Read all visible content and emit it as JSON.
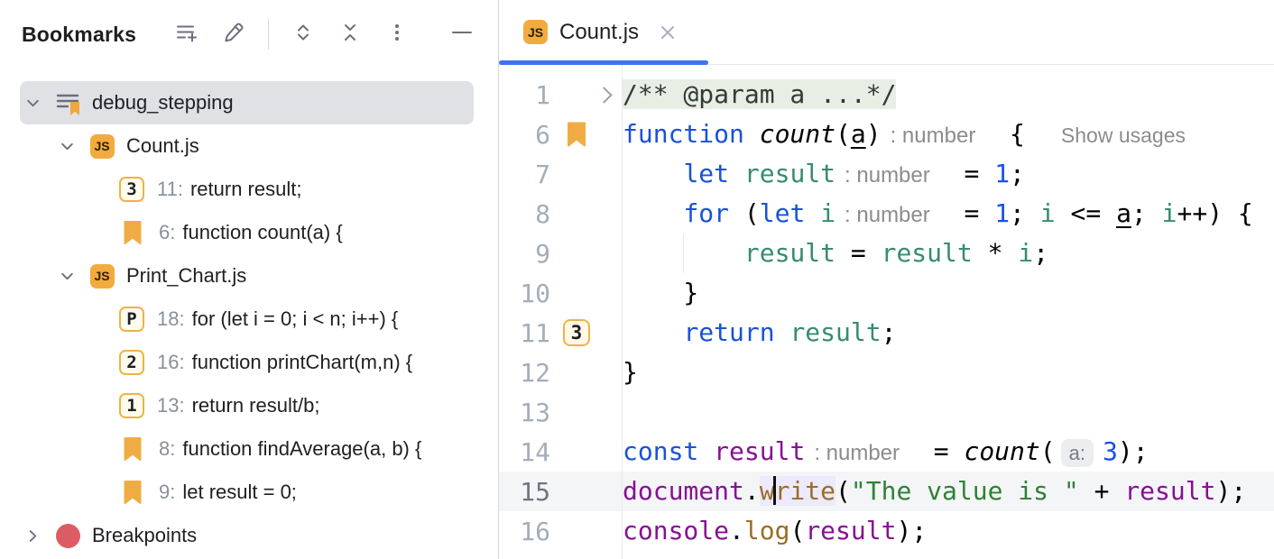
{
  "colors": {
    "accent_blue": "#3F74F0",
    "bookmark_orange": "#F2A63C",
    "breakpoint_red": "#DB5C64",
    "selection_gray": "#DFE1E5",
    "keyword_blue": "#1A52D6",
    "number_blue": "#1750EB",
    "local_variable_teal": "#368C72",
    "global_variable_purple": "#871094",
    "function_call_ochre": "#9A6E27",
    "string_green": "#2E8234",
    "inlay_gray": "#8C8C8C",
    "folded_comment_bg": "#E7EFE5"
  },
  "panel": {
    "title": "Bookmarks",
    "toolbar": [
      {
        "id": "add-bookmarks-list-button",
        "icon": "add-list-icon"
      },
      {
        "id": "edit-bookmark-button",
        "icon": "pencil-icon"
      },
      {
        "id": "toolbar-divider",
        "icon": "divider"
      },
      {
        "id": "expand-all-button",
        "icon": "expand-all-icon"
      },
      {
        "id": "collapse-all-button",
        "icon": "collapse-all-icon"
      },
      {
        "id": "more-options-button",
        "icon": "kebab-icon"
      },
      {
        "id": "hide-panel-button",
        "icon": "minimize-icon"
      }
    ],
    "tree": [
      {
        "id": "tree-item-debug-stepping",
        "level": 0,
        "chevron": "down",
        "icon": "bookmarks-list",
        "label": "debug_stepping",
        "selected": true
      },
      {
        "id": "tree-item-count-js",
        "level": 1,
        "chevron": "down",
        "icon": "js",
        "label": "Count.js"
      },
      {
        "id": "tree-item-bookmark-mnemonic-3",
        "level": 2,
        "badge": "3",
        "line": "11:",
        "label": "return result;"
      },
      {
        "id": "tree-item-bookmark-line-6",
        "level": 2,
        "flag": true,
        "line": "6:",
        "label": "function count(a) {"
      },
      {
        "id": "tree-item-print-chart-js",
        "level": 1,
        "chevron": "down",
        "icon": "js",
        "label": "Print_Chart.js"
      },
      {
        "id": "tree-item-bookmark-mnemonic-p",
        "level": 2,
        "badge": "P",
        "line": "18:",
        "label": "for (let i = 0; i < n; i++) {"
      },
      {
        "id": "tree-item-bookmark-mnemonic-2",
        "level": 2,
        "badge": "2",
        "line": "16:",
        "label": "function printChart(m,n) {"
      },
      {
        "id": "tree-item-bookmark-mnemonic-1",
        "level": 2,
        "badge": "1",
        "line": "13:",
        "label": "return result/b;"
      },
      {
        "id": "tree-item-bookmark-line-8",
        "level": 2,
        "flag": true,
        "line": "8:",
        "label": "function findAverage(a, b) {"
      },
      {
        "id": "tree-item-bookmark-line-9",
        "level": 2,
        "flag": true,
        "line": "9:",
        "label": "let result = 0;"
      },
      {
        "id": "tree-item-breakpoints",
        "level": 0,
        "chevron": "right",
        "icon": "breakpoint",
        "label": "Breakpoints"
      }
    ]
  },
  "editor": {
    "tab": {
      "label": "Count.js",
      "icon": "js-file-icon",
      "close_icon": "close-icon"
    },
    "lines": [
      {
        "num": "1",
        "fold": true,
        "tokens": [
          {
            "c": "folded",
            "t": "/** @param a ...*/"
          }
        ]
      },
      {
        "num": "6",
        "gutter": "flag",
        "tokens": [
          {
            "c": "kw",
            "t": "function"
          },
          {
            "c": "plain",
            "t": " "
          },
          {
            "c": "decl",
            "t": "count"
          },
          {
            "c": "plain",
            "t": "("
          },
          {
            "c": "param",
            "t": "a"
          },
          {
            "c": "plain",
            "t": ")"
          },
          {
            "c": "inlay",
            "t": ": number"
          },
          {
            "c": "plain",
            "t": "  {"
          },
          {
            "c": "usages",
            "t": "Show usages"
          }
        ]
      },
      {
        "num": "7",
        "tokens": [
          {
            "c": "plain",
            "t": "    "
          },
          {
            "c": "kw",
            "t": "let"
          },
          {
            "c": "plain",
            "t": " "
          },
          {
            "c": "local",
            "t": "result"
          },
          {
            "c": "inlay",
            "t": ": number"
          },
          {
            "c": "plain",
            "t": "  = "
          },
          {
            "c": "num",
            "t": "1"
          },
          {
            "c": "plain",
            "t": ";"
          }
        ]
      },
      {
        "num": "8",
        "tokens": [
          {
            "c": "plain",
            "t": "    "
          },
          {
            "c": "kw",
            "t": "for"
          },
          {
            "c": "plain",
            "t": " ("
          },
          {
            "c": "kw",
            "t": "let"
          },
          {
            "c": "plain",
            "t": " "
          },
          {
            "c": "local",
            "t": "i"
          },
          {
            "c": "inlay",
            "t": ": number"
          },
          {
            "c": "plain",
            "t": "  = "
          },
          {
            "c": "num",
            "t": "1"
          },
          {
            "c": "plain",
            "t": "; "
          },
          {
            "c": "local",
            "t": "i"
          },
          {
            "c": "plain",
            "t": " <= "
          },
          {
            "c": "param",
            "t": "a"
          },
          {
            "c": "plain",
            "t": "; "
          },
          {
            "c": "local",
            "t": "i"
          },
          {
            "c": "plain",
            "t": "++) {"
          }
        ]
      },
      {
        "num": "9",
        "guide": true,
        "tokens": [
          {
            "c": "plain",
            "t": "        "
          },
          {
            "c": "local",
            "t": "result"
          },
          {
            "c": "plain",
            "t": " = "
          },
          {
            "c": "local",
            "t": "result"
          },
          {
            "c": "plain",
            "t": " * "
          },
          {
            "c": "local",
            "t": "i"
          },
          {
            "c": "plain",
            "t": ";"
          }
        ]
      },
      {
        "num": "10",
        "tokens": [
          {
            "c": "plain",
            "t": "    }"
          }
        ]
      },
      {
        "num": "11",
        "gutter": "badge",
        "badge": "3",
        "tokens": [
          {
            "c": "plain",
            "t": "    "
          },
          {
            "c": "kw",
            "t": "return"
          },
          {
            "c": "plain",
            "t": " "
          },
          {
            "c": "local",
            "t": "result"
          },
          {
            "c": "plain",
            "t": ";"
          }
        ]
      },
      {
        "num": "12",
        "tokens": [
          {
            "c": "plain",
            "t": "}"
          }
        ]
      },
      {
        "num": "13",
        "tokens": []
      },
      {
        "num": "14",
        "tokens": [
          {
            "c": "kw",
            "t": "const"
          },
          {
            "c": "plain",
            "t": " "
          },
          {
            "c": "global",
            "t": "result"
          },
          {
            "c": "inlay",
            "t": ": number"
          },
          {
            "c": "plain",
            "t": "  = "
          },
          {
            "c": "decl",
            "t": "count"
          },
          {
            "c": "plain",
            "t": "("
          },
          {
            "c": "phint",
            "t": "a:"
          },
          {
            "c": "num",
            "t": "3"
          },
          {
            "c": "plain",
            "t": ");"
          }
        ]
      },
      {
        "num": "15",
        "current": true,
        "tokens": [
          {
            "c": "global",
            "t": "document"
          },
          {
            "c": "plain",
            "t": "."
          },
          {
            "c": "fn hl",
            "t": "w"
          },
          {
            "c": "caret"
          },
          {
            "c": "fn hl",
            "t": "rite"
          },
          {
            "c": "plain",
            "t": "("
          },
          {
            "c": "str",
            "t": "\"The value is \""
          },
          {
            "c": "plain",
            "t": " + "
          },
          {
            "c": "global",
            "t": "result"
          },
          {
            "c": "plain",
            "t": ");"
          }
        ]
      },
      {
        "num": "16",
        "tokens": [
          {
            "c": "global",
            "t": "console"
          },
          {
            "c": "plain",
            "t": "."
          },
          {
            "c": "fn",
            "t": "log"
          },
          {
            "c": "plain",
            "t": "("
          },
          {
            "c": "global",
            "t": "result"
          },
          {
            "c": "plain",
            "t": ");"
          }
        ]
      }
    ]
  }
}
